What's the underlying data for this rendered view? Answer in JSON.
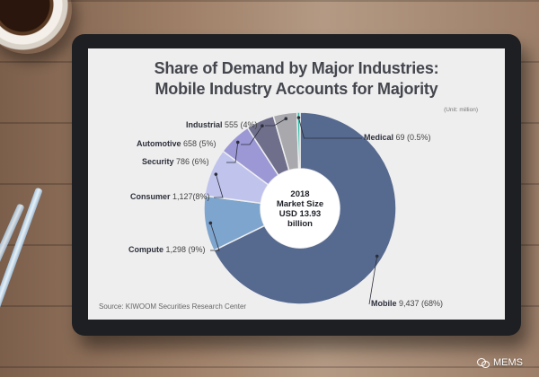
{
  "chart_data": {
    "type": "pie",
    "donut": true,
    "title": "Share of Demand by Major Industries:",
    "subtitle": "Mobile Industry Accounts for Majority",
    "unit_note": "(Unit: million)",
    "center_label": [
      "2018",
      "Market Size",
      "USD 13.93",
      "billion"
    ],
    "source": "Source: KIWOOM Securities Research Center",
    "slices": [
      {
        "name": "Mobile",
        "value": 9437,
        "value_label": "9,437 (68%)",
        "color": "#56698f"
      },
      {
        "name": "Compute",
        "value": 1298,
        "value_label": "1,298 (9%)",
        "color": "#7ea5cd"
      },
      {
        "name": "Consumer",
        "value": 1127,
        "value_label": "1,127(8%)",
        "color": "#c0c3ec"
      },
      {
        "name": "Security",
        "value": 786,
        "value_label": "786 (6%)",
        "color": "#9c98d6"
      },
      {
        "name": "Automotive",
        "value": 658,
        "value_label": "658 (5%)",
        "color": "#6f6f8c"
      },
      {
        "name": "Industrial",
        "value": 555,
        "value_label": "555 (4%)",
        "color": "#a8a8ad"
      },
      {
        "name": "Medical",
        "value": 69,
        "value_label": "69 (0.5%)",
        "color": "#30bfa9"
      }
    ]
  },
  "watermark": {
    "text": "MEMS",
    "icon": "wechat-icon"
  }
}
